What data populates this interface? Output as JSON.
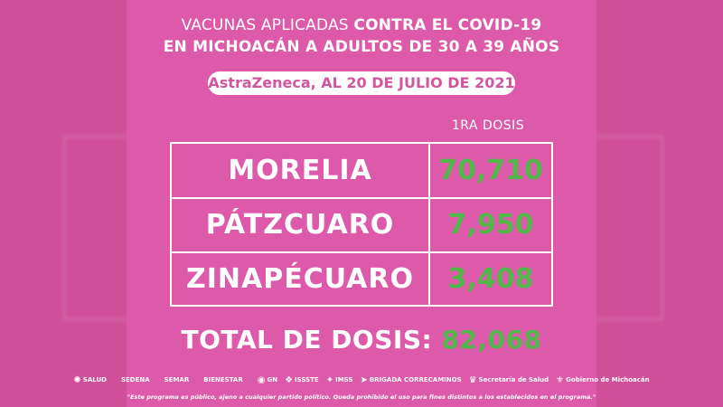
{
  "header": {
    "line1_normal": "VACUNAS APLICADAS ",
    "line1_bold": "CONTRA EL COVID-19",
    "line2": "EN MICHOACÁN A ADULTOS DE 30 A 39 AÑOS",
    "subtitle": "AstraZeneca, AL 20 DE JULIO DE 2021"
  },
  "table": {
    "column_header": "1RA DOSIS",
    "rows": [
      {
        "municipio": "MORELIA",
        "dosis": "70,710"
      },
      {
        "municipio": "PÁTZCUARO",
        "dosis": "7,950"
      },
      {
        "municipio": "ZINAPÉCUARO",
        "dosis": "3,408"
      }
    ]
  },
  "total": {
    "label": "TOTAL DE DOSIS: ",
    "value": "82,068"
  },
  "footer": {
    "logos": [
      "SALUD",
      "SEDENA",
      "SEMAR",
      "BIENESTAR",
      "GN",
      "ISSSTE",
      "IMSS",
      "BRIGADA CORRECAMINOS",
      "Secretaría de Salud",
      "Gobierno de Michoacán"
    ],
    "disclaimer": "\"Este programa es público, ajeno a cualquier partido político. Queda prohibido el uso para fines distintos a los establecidos en el programa.\""
  },
  "colors": {
    "background": "#d4559f",
    "card": "#dc5aa9",
    "number_green": "#4fb848",
    "text": "#ffffff"
  }
}
